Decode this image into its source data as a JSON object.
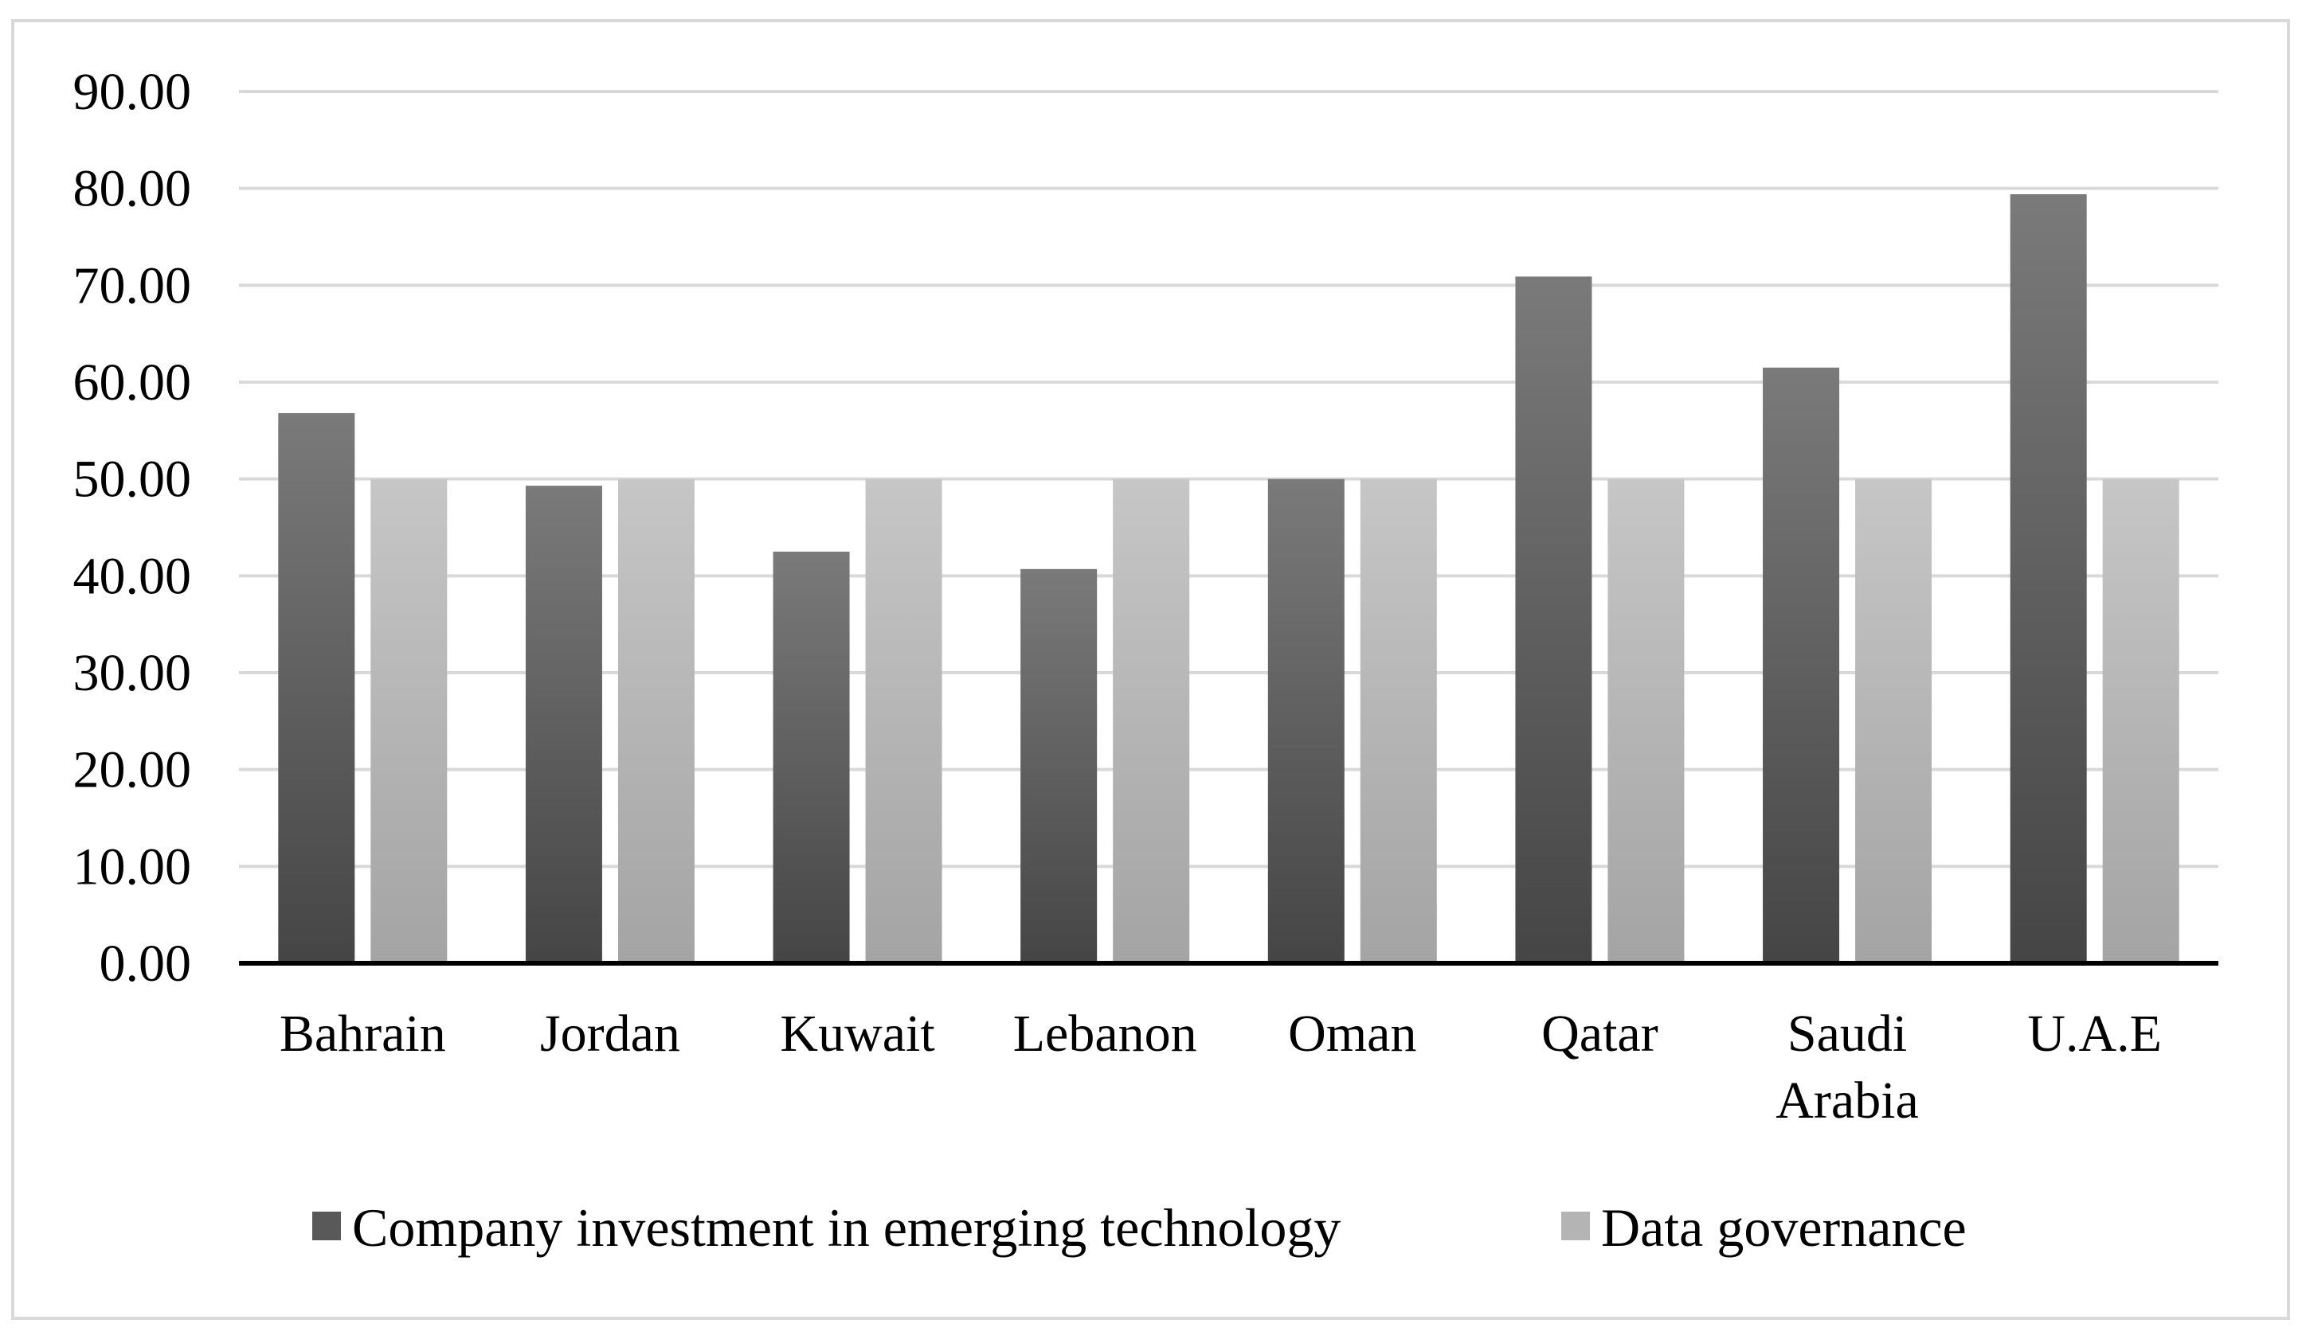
{
  "chart_data": {
    "type": "bar",
    "title": "",
    "xlabel": "",
    "ylabel": "",
    "ylim": [
      0,
      90
    ],
    "yticks": [
      "0.00",
      "10.00",
      "20.00",
      "30.00",
      "40.00",
      "50.00",
      "60.00",
      "70.00",
      "80.00",
      "90.00"
    ],
    "grid": true,
    "legend_position": "bottom",
    "categories": [
      [
        "Bahrain"
      ],
      [
        "Jordan"
      ],
      [
        "Kuwait"
      ],
      [
        "Lebanon"
      ],
      [
        "Oman"
      ],
      [
        "Qatar"
      ],
      [
        "Saudi",
        "Arabia"
      ],
      [
        "U.A.E"
      ]
    ],
    "series": [
      {
        "name": "Company investment in emerging technology",
        "color": "#595959",
        "values": [
          56.8,
          49.3,
          42.5,
          40.7,
          50.0,
          70.9,
          61.5,
          79.4
        ]
      },
      {
        "name": "Data governance",
        "color": "#b4b4b4",
        "values": [
          50.0,
          50.0,
          50.0,
          50.0,
          50.0,
          50.0,
          50.0,
          50.0
        ]
      }
    ]
  }
}
